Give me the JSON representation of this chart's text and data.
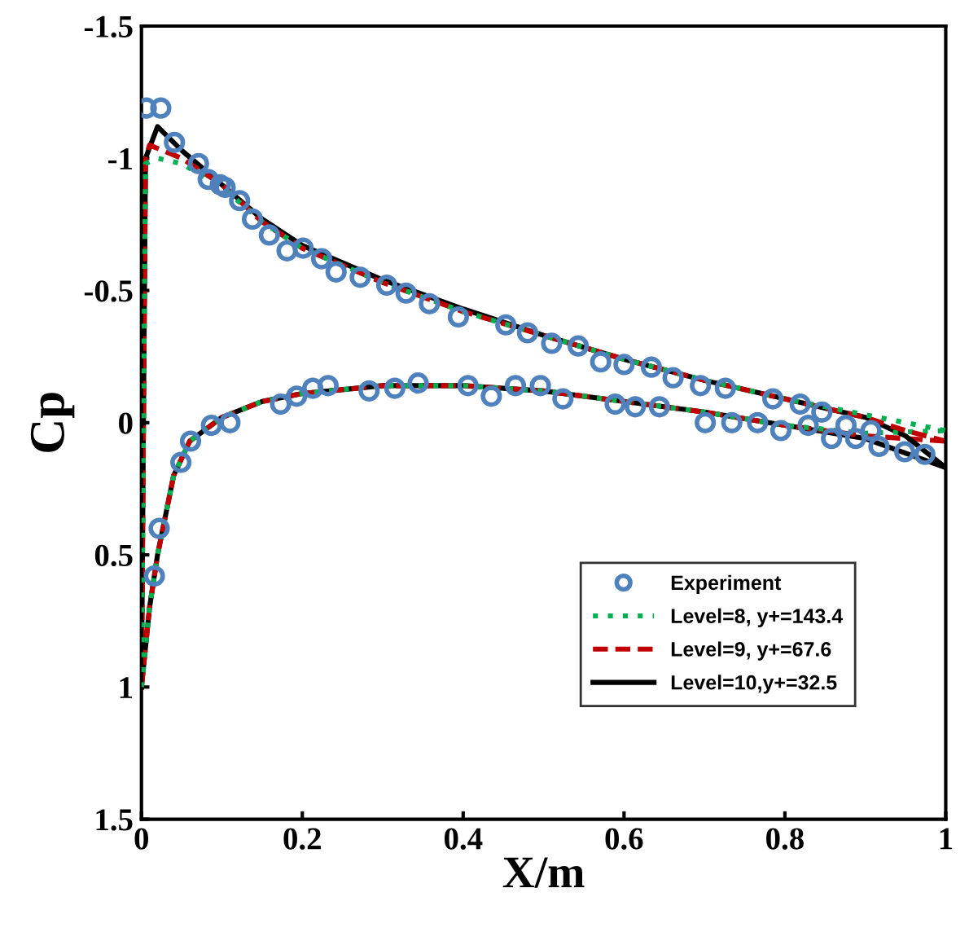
{
  "chart_data": {
    "type": "line",
    "xlabel": "X/m",
    "ylabel": "Cp",
    "xlim": [
      0,
      1
    ],
    "ylim": [
      1.5,
      -1.5
    ],
    "xticks": [
      0,
      0.2,
      0.4,
      0.6,
      0.8,
      1
    ],
    "yticks": [
      1.5,
      1,
      0.5,
      0,
      -0.5,
      -1,
      -1.5
    ],
    "grid": false,
    "legend": "bottom right",
    "series": [
      {
        "name": "Experiment",
        "type": "scatter",
        "marker": "circle",
        "color": "#4f81bd",
        "x": [
          0.006,
          0.024,
          0.041,
          0.071,
          0.083,
          0.098,
          0.104,
          0.122,
          0.138,
          0.159,
          0.181,
          0.201,
          0.224,
          0.242,
          0.272,
          0.305,
          0.329,
          0.358,
          0.394,
          0.453,
          0.48,
          0.51,
          0.543,
          0.571,
          0.6,
          0.634,
          0.661,
          0.695,
          0.726,
          0.785,
          0.819,
          0.846,
          0.876,
          0.907,
          0.016,
          0.022,
          0.049,
          0.061,
          0.087,
          0.11,
          0.173,
          0.193,
          0.213,
          0.232,
          0.283,
          0.315,
          0.344,
          0.406,
          0.435,
          0.465,
          0.496,
          0.524,
          0.589,
          0.614,
          0.644,
          0.701,
          0.734,
          0.766,
          0.795,
          0.829,
          0.858,
          0.888,
          0.917,
          0.949,
          0.974
        ],
        "values": [
          -1.19,
          -1.19,
          -1.06,
          -0.98,
          -0.92,
          -0.9,
          -0.89,
          -0.84,
          -0.77,
          -0.71,
          -0.65,
          -0.66,
          -0.62,
          -0.57,
          -0.55,
          -0.52,
          -0.49,
          -0.45,
          -0.4,
          -0.37,
          -0.34,
          -0.3,
          -0.29,
          -0.23,
          -0.22,
          -0.21,
          -0.17,
          -0.14,
          -0.13,
          -0.09,
          -0.07,
          -0.04,
          0.01,
          0.03,
          0.58,
          0.4,
          0.15,
          0.07,
          0.01,
          0.0,
          -0.07,
          -0.1,
          -0.13,
          -0.14,
          -0.12,
          -0.13,
          -0.15,
          -0.14,
          -0.1,
          -0.14,
          -0.14,
          -0.09,
          -0.07,
          -0.06,
          -0.06,
          0.0,
          0.0,
          0.0,
          0.03,
          0.01,
          0.06,
          0.06,
          0.09,
          0.11,
          0.12
        ]
      },
      {
        "name": "Level=8, y+=143.4",
        "line_style": "dotted",
        "color": "#00b050",
        "x": [
          0.0,
          0.005,
          0.02,
          0.05,
          0.1,
          0.15,
          0.2,
          0.3,
          0.4,
          0.5,
          0.6,
          0.7,
          0.8,
          0.9,
          0.95,
          1.0
        ],
        "values": [
          1.0,
          -0.98,
          -1.0,
          -0.98,
          -0.89,
          -0.76,
          -0.66,
          -0.53,
          -0.42,
          -0.33,
          -0.24,
          -0.16,
          -0.09,
          -0.03,
          0.0,
          0.03
        ]
      },
      {
        "line_style": "dotted",
        "color": "#00b050",
        "x": [
          0.0,
          0.01,
          0.02,
          0.04,
          0.06,
          0.1,
          0.15,
          0.2,
          0.3,
          0.4,
          0.5,
          0.6,
          0.7,
          0.8,
          0.9,
          1.0
        ],
        "values": [
          1.0,
          0.7,
          0.5,
          0.2,
          0.07,
          -0.02,
          -0.08,
          -0.11,
          -0.14,
          -0.14,
          -0.12,
          -0.08,
          -0.04,
          0.01,
          0.04,
          0.03
        ]
      },
      {
        "name": "Level=9, y+=67.6",
        "line_style": "dashed",
        "color": "#c00000",
        "x": [
          0.0,
          0.005,
          0.01,
          0.05,
          0.1,
          0.15,
          0.2,
          0.3,
          0.4,
          0.5,
          0.6,
          0.7,
          0.8,
          0.9,
          0.95,
          1.0
        ],
        "values": [
          1.0,
          -1.0,
          -1.05,
          -1.0,
          -0.9,
          -0.76,
          -0.66,
          -0.53,
          -0.42,
          -0.33,
          -0.24,
          -0.16,
          -0.09,
          -0.02,
          0.03,
          0.07
        ]
      },
      {
        "line_style": "dashed",
        "color": "#c00000",
        "x": [
          0.0,
          0.01,
          0.02,
          0.04,
          0.06,
          0.1,
          0.15,
          0.2,
          0.3,
          0.4,
          0.5,
          0.6,
          0.7,
          0.8,
          0.9,
          1.0
        ],
        "values": [
          1.0,
          0.7,
          0.5,
          0.2,
          0.07,
          -0.02,
          -0.08,
          -0.11,
          -0.14,
          -0.14,
          -0.12,
          -0.08,
          -0.04,
          0.01,
          0.05,
          0.07
        ]
      },
      {
        "name": "Level=10,y+=32.5",
        "line_style": "solid",
        "color": "#000000",
        "x": [
          0.0,
          0.005,
          0.02,
          0.05,
          0.1,
          0.15,
          0.2,
          0.3,
          0.4,
          0.5,
          0.6,
          0.7,
          0.8,
          0.9,
          0.95,
          1.0
        ],
        "values": [
          1.0,
          -1.0,
          -1.12,
          -1.03,
          -0.9,
          -0.77,
          -0.67,
          -0.54,
          -0.43,
          -0.33,
          -0.24,
          -0.16,
          -0.09,
          -0.02,
          0.05,
          0.17
        ]
      },
      {
        "line_style": "solid",
        "color": "#000000",
        "x": [
          0.0,
          0.01,
          0.02,
          0.04,
          0.06,
          0.1,
          0.15,
          0.2,
          0.3,
          0.4,
          0.5,
          0.6,
          0.7,
          0.8,
          0.9,
          1.0
        ],
        "values": [
          1.0,
          0.7,
          0.5,
          0.2,
          0.07,
          -0.02,
          -0.08,
          -0.11,
          -0.14,
          -0.14,
          -0.12,
          -0.08,
          -0.04,
          0.01,
          0.06,
          0.17
        ]
      }
    ]
  }
}
